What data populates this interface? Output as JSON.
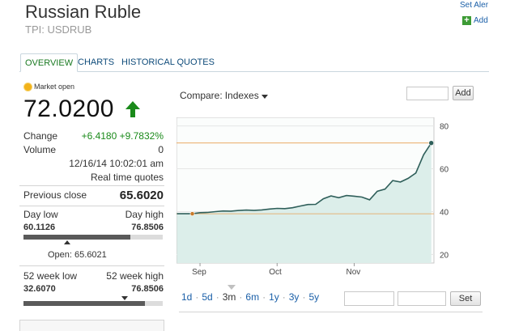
{
  "header": {
    "title": "Russian Ruble",
    "symbol": "TPI: USDRUB",
    "set_alert": "Set Aler",
    "add_label": "Add"
  },
  "tabs": [
    {
      "label": "OVERVIEW",
      "active": true
    },
    {
      "label": "CHARTS",
      "active": false
    },
    {
      "label": "HISTORICAL QUOTES",
      "active": false
    }
  ],
  "quote": {
    "market_status": "Market open",
    "price": "72.0200",
    "change_label": "Change",
    "change_value": "+6.4180 +9.7832%",
    "volume_label": "Volume",
    "volume_value": "0",
    "timestamp": "12/16/14 10:02:01 am",
    "realtime": "Real time quotes",
    "prev_close_label": "Previous close",
    "prev_close_value": "65.6020",
    "day_low_label": "Day low",
    "day_low_value": "60.1126",
    "day_high_label": "Day high",
    "day_high_value": "76.8506",
    "day_range_fill": 0.77,
    "open_text": "Open: 65.6021",
    "wk52_low_label": "52 week low",
    "wk52_low_value": "32.6070",
    "wk52_high_label": "52 week high",
    "wk52_high_value": "76.8506",
    "wk52_range_fill": 0.87
  },
  "compare": {
    "label": "Compare:",
    "dropdown": "Indexes",
    "add_button": "Add"
  },
  "periods": [
    "1d",
    "5d",
    "3m",
    "6m",
    "1y",
    "3y",
    "5y"
  ],
  "set_button": "Set",
  "colors": {
    "line": "#2f5f5a",
    "area": "#dceeea",
    "reference": "#e8a050",
    "link": "#1a5fa8",
    "positive": "#1a8a1a"
  },
  "chart_data": {
    "type": "area",
    "x_tick_labels": [
      "Sep",
      "Oct",
      "Nov"
    ],
    "y_tick_labels": [
      "80",
      "60",
      "40",
      "20"
    ],
    "ylim": [
      16,
      84
    ],
    "y_ticks": [
      80,
      60,
      40,
      20
    ],
    "reference_lines": [
      72.02,
      39.0
    ],
    "x": [
      "Aug 25",
      "Aug 28",
      "Sep 1",
      "Sep 4",
      "Sep 8",
      "Sep 11",
      "Sep 15",
      "Sep 18",
      "Sep 22",
      "Sep 25",
      "Sep 29",
      "Oct 2",
      "Oct 6",
      "Oct 9",
      "Oct 13",
      "Oct 16",
      "Oct 20",
      "Oct 23",
      "Oct 27",
      "Oct 30",
      "Nov 3",
      "Nov 6",
      "Nov 10",
      "Nov 13",
      "Nov 17",
      "Nov 20",
      "Nov 24",
      "Nov 27",
      "Dec 1",
      "Dec 4",
      "Dec 8",
      "Dec 11",
      "Dec 15",
      "Dec 16"
    ],
    "series": [
      {
        "values": [
          39.0,
          39.0,
          39.0,
          39.5,
          39.6,
          40.0,
          40.3,
          40.2,
          40.5,
          40.7,
          40.6,
          40.8,
          41.2,
          41.5,
          41.4,
          41.8,
          42.6,
          43.3,
          43.4,
          46.0,
          47.3,
          46.5,
          47.5,
          47.2,
          46.8,
          45.5,
          49.5,
          50.5,
          54.5,
          53.8,
          55.5,
          58.0,
          66.5,
          72.02
        ]
      }
    ],
    "markers": [
      {
        "x": "Sep 1",
        "y": 39.0
      },
      {
        "x": "Dec 16",
        "y": 72.02
      }
    ]
  }
}
